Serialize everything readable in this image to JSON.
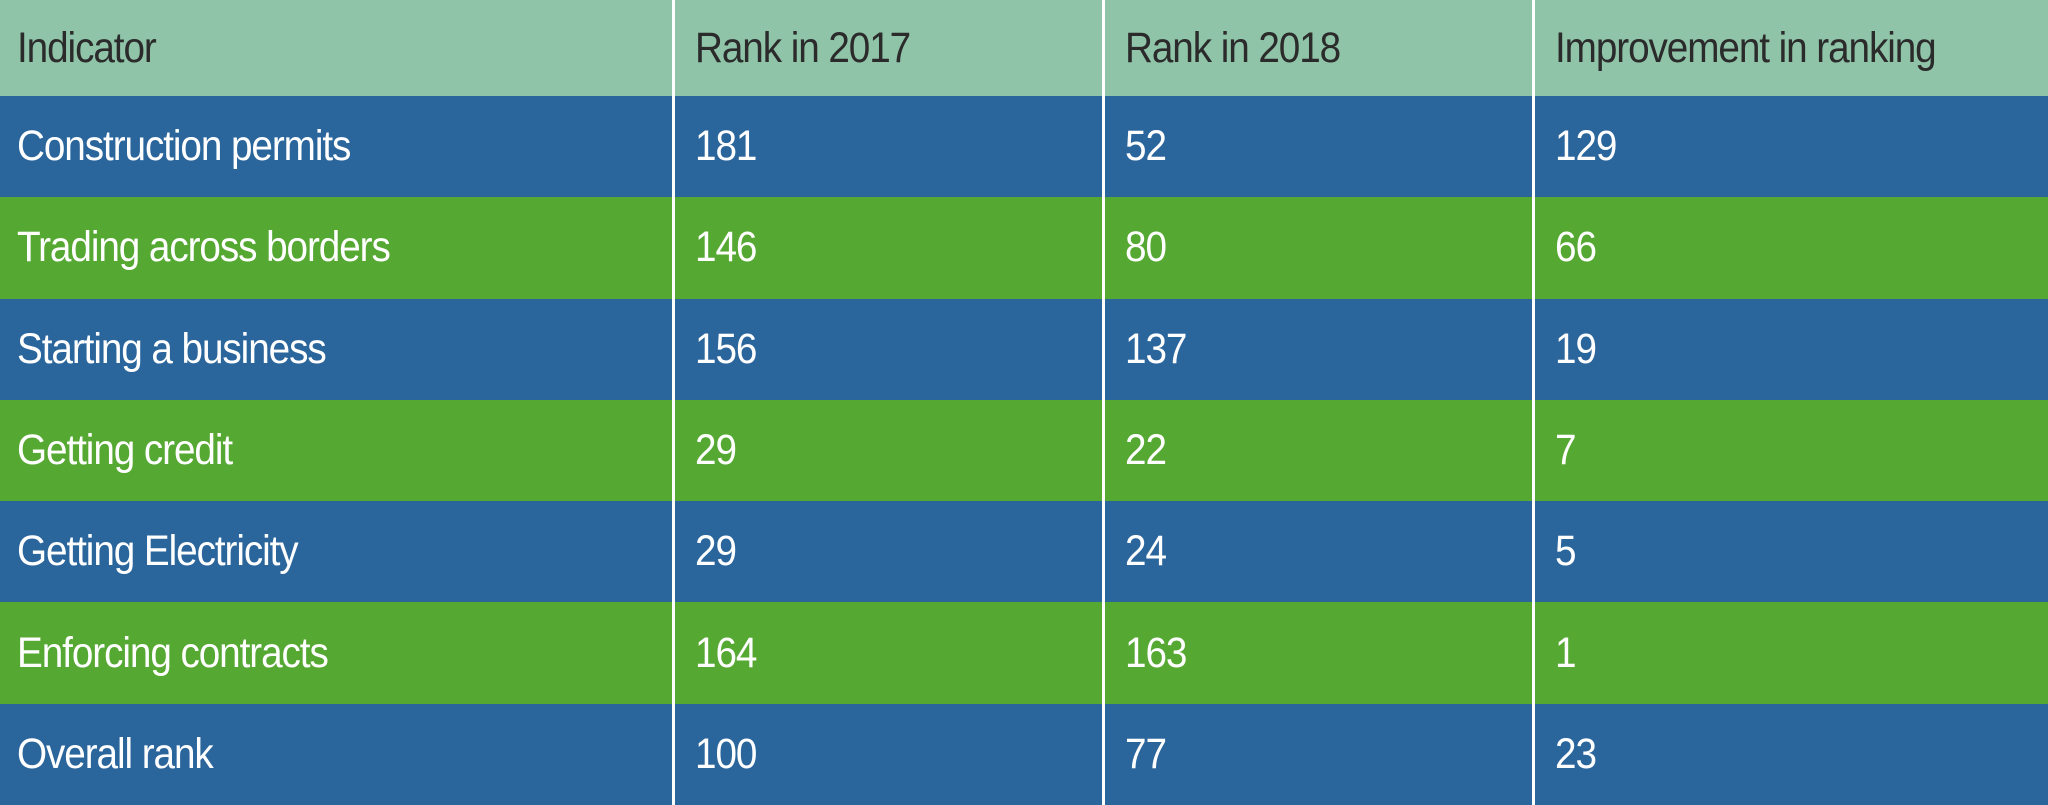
{
  "headers": [
    "Indicator",
    "Rank in 2017",
    "Rank in 2018",
    "Improvement in ranking"
  ],
  "rows": [
    [
      "Construction permits",
      "181",
      "52",
      "129"
    ],
    [
      "Trading across borders",
      "146",
      "80",
      "66"
    ],
    [
      "Starting a business",
      "156",
      "137",
      "19"
    ],
    [
      "Getting credit",
      "29",
      "22",
      "7"
    ],
    [
      "Getting Electricity",
      "29",
      "24",
      "5"
    ],
    [
      "Enforcing contracts",
      "164",
      "163",
      "1"
    ],
    [
      "Overall rank",
      "100",
      "77",
      "23"
    ]
  ],
  "colors": {
    "header": "#8fc4a8",
    "row_blue": "#2a659c",
    "row_green": "#55a832"
  }
}
